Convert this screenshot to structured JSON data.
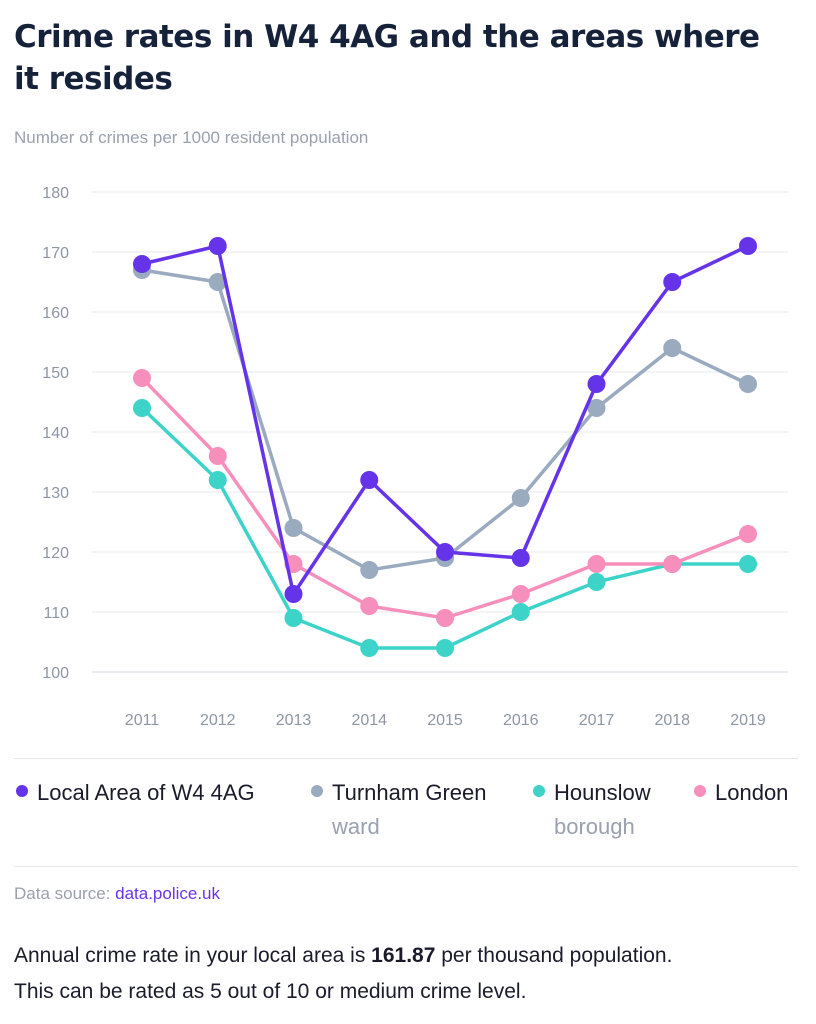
{
  "header": {
    "title": "Crime rates in W4 4AG and the areas where it resides",
    "subtitle": "Number of crimes per 1000 resident population"
  },
  "chart_data": {
    "type": "line",
    "x": [
      "2011",
      "2012",
      "2013",
      "2014",
      "2015",
      "2016",
      "2017",
      "2018",
      "2019"
    ],
    "ylim": [
      100,
      180
    ],
    "yticks": [
      "100",
      "110",
      "120",
      "130",
      "140",
      "150",
      "160",
      "170",
      "180"
    ],
    "grid": true,
    "legend_placement": "bottom",
    "series": [
      {
        "name": "Hounslow borough",
        "color": "#3dd3c9",
        "values": [
          144,
          132,
          109,
          104,
          104,
          110,
          115,
          118,
          118
        ]
      },
      {
        "name": "London",
        "color": "#f78fbd",
        "values": [
          149,
          136,
          118,
          111,
          109,
          113,
          118,
          118,
          123
        ]
      },
      {
        "name": "Turnham Green ward",
        "color": "#9aaabf",
        "values": [
          167,
          165,
          124,
          117,
          119,
          129,
          144,
          154,
          148
        ]
      },
      {
        "name": "Local Area of W4 4AG",
        "color": "#6534e8",
        "values": [
          168,
          171,
          113,
          132,
          120,
          119,
          148,
          165,
          171
        ]
      }
    ]
  },
  "legend": {
    "items": [
      {
        "label": "Local Area of W4 4AG",
        "sub": "",
        "color": "#6534e8"
      },
      {
        "label": "Turnham Green",
        "sub": "ward",
        "color": "#9aaabf"
      },
      {
        "label": "Hounslow",
        "sub": "borough",
        "color": "#3dd3c9"
      },
      {
        "label": "London",
        "sub": "",
        "color": "#f78fbd"
      }
    ]
  },
  "footer": {
    "source_label": "Data source: ",
    "source_link": "data.police.uk",
    "summary_part1": "Annual crime rate in your local area is ",
    "summary_value": "161.87",
    "summary_part2": " per thousand population.",
    "summary_line2": "This can be rated as 5 out of 10 or medium crime level."
  }
}
